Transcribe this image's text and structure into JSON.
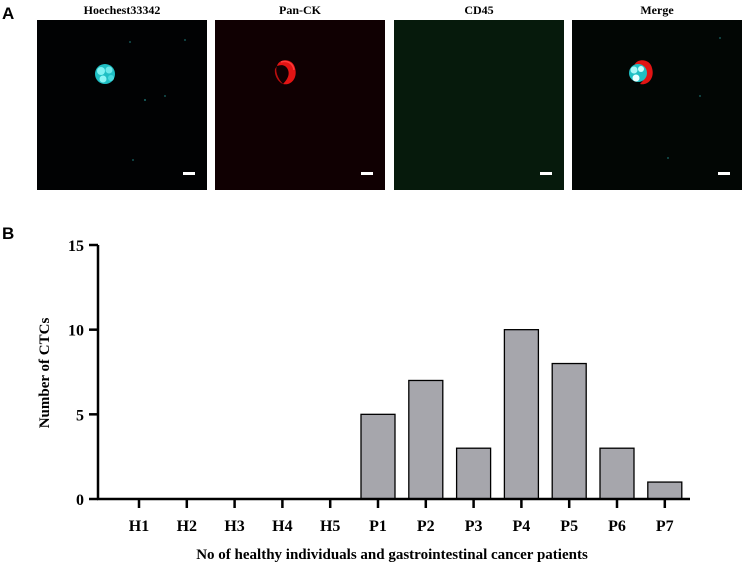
{
  "panel_a_label": "A",
  "panel_b_label": "B",
  "micrographs": [
    {
      "title": "Hoechest33342",
      "stain": "nucleus",
      "color": "#2fd6d6"
    },
    {
      "title": "Pan-CK",
      "stain": "cytokeratin",
      "color": "#e01010"
    },
    {
      "title": "CD45",
      "stain": "none",
      "color": "#061a0c"
    },
    {
      "title": "Merge",
      "stain": "merge",
      "color": "#e01010"
    }
  ],
  "chart_data": {
    "type": "bar",
    "categories": [
      "H1",
      "H2",
      "H3",
      "H4",
      "H5",
      "P1",
      "P2",
      "P3",
      "P4",
      "P5",
      "P6",
      "P7"
    ],
    "values": [
      0,
      0,
      0,
      0,
      0,
      5,
      7,
      3,
      10,
      8,
      3,
      1
    ],
    "xlabel": "No of healthy individuals and gastrointestinal cancer patients",
    "ylabel": "Number of CTCs",
    "ylim": [
      0,
      15
    ],
    "yticks": [
      0,
      5,
      10,
      15
    ],
    "bar_color": "#a6a6ac",
    "grid": false,
    "legend": "none"
  }
}
